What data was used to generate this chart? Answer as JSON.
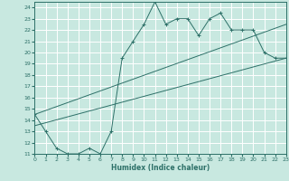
{
  "title": "",
  "xlabel": "Humidex (Indice chaleur)",
  "xlim": [
    0,
    23
  ],
  "ylim": [
    11,
    24.5
  ],
  "yticks": [
    11,
    12,
    13,
    14,
    15,
    16,
    17,
    18,
    19,
    20,
    21,
    22,
    23,
    24
  ],
  "xticks": [
    0,
    1,
    2,
    3,
    4,
    5,
    6,
    7,
    8,
    9,
    10,
    11,
    12,
    13,
    14,
    15,
    16,
    17,
    18,
    19,
    20,
    21,
    22,
    23
  ],
  "bg_color": "#c8e8e0",
  "grid_color": "#ffffff",
  "line_color": "#2d7068",
  "line1_x": [
    0,
    1,
    2,
    3,
    4,
    5,
    6,
    7,
    8,
    9,
    10,
    11,
    12,
    13,
    14,
    15,
    16,
    17,
    18,
    19,
    20,
    21,
    22,
    23
  ],
  "line1_y": [
    14.5,
    13.0,
    11.5,
    11.0,
    11.0,
    11.5,
    11.0,
    13.0,
    19.5,
    21.0,
    22.5,
    24.5,
    22.5,
    23.0,
    23.0,
    21.5,
    23.0,
    23.5,
    22.0,
    22.0,
    22.0,
    20.0,
    19.5,
    19.5
  ],
  "line2_x": [
    0,
    23
  ],
  "line2_y": [
    13.5,
    19.5
  ],
  "line3_x": [
    0,
    23
  ],
  "line3_y": [
    14.5,
    22.5
  ]
}
